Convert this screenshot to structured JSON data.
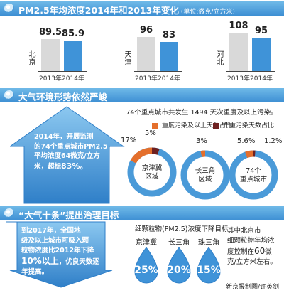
{
  "sections": {
    "s1_title": "PM2.5年均浓度2014年和2013年变化",
    "s1_unit": "(单位:微克/立方米)",
    "s2_title": "大气环境形势依然严峻",
    "s3_title": "“大气十条”提出治理目标"
  },
  "chart_data": [
    {
      "type": "bar",
      "categories": [
        "北京",
        "天津",
        "河北"
      ],
      "x_labels": [
        "2013年",
        "2014年"
      ],
      "series": [
        {
          "name": "2013年",
          "values": [
            89.5,
            96,
            108
          ]
        },
        {
          "name": "2014年",
          "values": [
            85.9,
            83,
            95
          ]
        }
      ],
      "value_labels": {
        "2013": [
          "89.5",
          "96",
          "108"
        ],
        "2014": [
          "85.9",
          "83",
          "95"
        ]
      }
    },
    {
      "type": "pie",
      "summary": "74个重点城市共发生 1494 天次重度及以上污染。",
      "legend": [
        {
          "label": "重度污染及以上天数占比",
          "color": "#e46f2c"
        },
        {
          "label": "严重污染天数占比",
          "color": "#6e2020"
        }
      ],
      "regions": [
        {
          "name": "京津冀区域",
          "heavy_pct": 17,
          "severe_pct": 5,
          "heavy_label": "17%",
          "severe_label": "5%"
        },
        {
          "name": "长三角区域",
          "heavy_pct": 3,
          "severe_pct": 0,
          "heavy_label": "3%",
          "severe_label": ""
        },
        {
          "name": "74个重点城市",
          "heavy_pct": 5.6,
          "severe_pct": 1.2,
          "heavy_label": "5.6%",
          "severe_label": "1.2%"
        }
      ]
    },
    {
      "type": "bar",
      "title": "细颗粒物(PM2.5)浓度下降目标",
      "categories": [
        "京津冀",
        "长三角",
        "珠三角"
      ],
      "values": [
        25,
        20,
        15
      ],
      "value_labels": [
        "25%",
        "20%",
        "15%"
      ]
    }
  ],
  "arrow_text": {
    "line1": "2014年，开展监测",
    "line2": "的74个重点城市PM2.5",
    "line3": "平均浓度64微克/立方",
    "line4": "米，超标",
    "highlight": "83%。"
  },
  "goal_text": {
    "line1": "到2017年，全国地",
    "line2": "级及以上城市可吸入颗",
    "line3": "粒物浓度比2012年下降",
    "big": "10%以上",
    "line4": "，优良天数逐",
    "line5": "年提高。"
  },
  "beijing_text": {
    "line1": "其中北京市",
    "line2": "细颗粒物年均浓",
    "line3": "度控制在",
    "big": "60",
    "unit": "微",
    "line4": "克/立方米左右。"
  },
  "credit": "新京报制图/许英剑",
  "colors": {
    "accent": "#3f93d8",
    "bar2013": "#d9d9d9",
    "heavy": "#e46f2c",
    "severe": "#6e2020"
  }
}
